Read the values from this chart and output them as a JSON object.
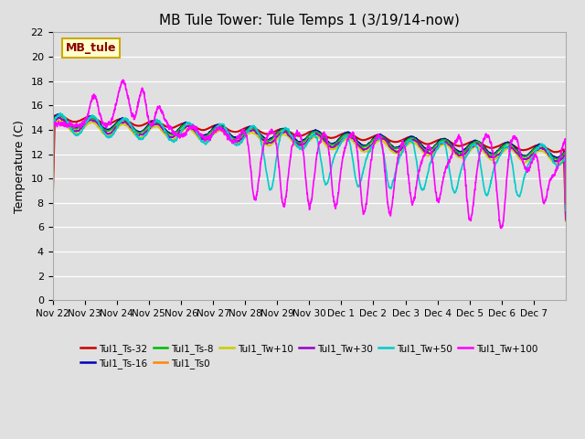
{
  "title": "MB Tule Tower: Tule Temps 1 (3/19/14-now)",
  "ylabel": "Temperature (C)",
  "ylim": [
    0,
    22
  ],
  "yticks": [
    0,
    2,
    4,
    6,
    8,
    10,
    12,
    14,
    16,
    18,
    20,
    22
  ],
  "plot_bg_color": "#e0e0e0",
  "grid_color": "#ffffff",
  "series": [
    {
      "label": "Tul1_Ts-32",
      "color": "#cc0000",
      "lw": 1.5
    },
    {
      "label": "Tul1_Ts-16",
      "color": "#0000bb",
      "lw": 1.2
    },
    {
      "label": "Tul1_Ts-8",
      "color": "#00bb00",
      "lw": 1.2
    },
    {
      "label": "Tul1_Ts0",
      "color": "#ff8800",
      "lw": 1.2
    },
    {
      "label": "Tul1_Tw+10",
      "color": "#cccc00",
      "lw": 1.2
    },
    {
      "label": "Tul1_Tw+30",
      "color": "#9900cc",
      "lw": 1.2
    },
    {
      "label": "Tul1_Tw+50",
      "color": "#00cccc",
      "lw": 1.2
    },
    {
      "label": "Tul1_Tw+100",
      "color": "#ff00ff",
      "lw": 1.2
    }
  ],
  "xtick_labels": [
    "Nov 22",
    "Nov 23",
    "Nov 24",
    "Nov 25",
    "Nov 26",
    "Nov 27",
    "Nov 28",
    "Nov 29",
    "Nov 30",
    "Dec 1",
    "Dec 2",
    "Dec 3",
    "Dec 4",
    "Dec 5",
    "Dec 6",
    "Dec 7"
  ],
  "n_days": 16,
  "annotation_text": "MB_tule",
  "annotation_color": "#8b0000",
  "annotation_bg": "#ffffcc",
  "annotation_border": "#ccaa00"
}
